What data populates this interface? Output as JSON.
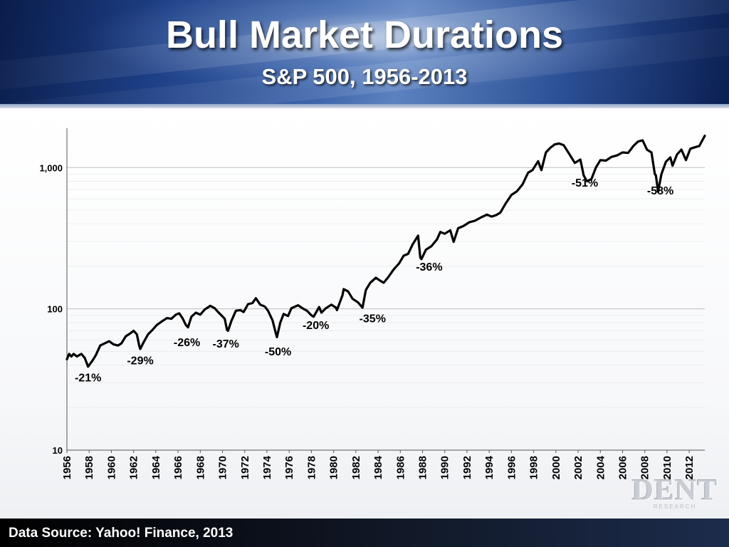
{
  "header": {
    "title": "Bull Market Durations",
    "subtitle": "S&P 500, 1956-2013"
  },
  "footer": {
    "source": "Data Source: Yahoo! Finance, 2013"
  },
  "logo": {
    "text": "DENT",
    "sub": "RESEARCH"
  },
  "colors": {
    "banner": "#1d3f86",
    "line": "#000000",
    "grid": "#bdbdbd",
    "footer": "#000000"
  },
  "chart_data": {
    "type": "line",
    "title": "Bull Market Durations",
    "subtitle": "S&P 500, 1956-2013",
    "xlabel": "",
    "ylabel": "",
    "yscale": "log",
    "ylim": [
      10,
      1900
    ],
    "xlim": [
      1956,
      2013.4
    ],
    "grid": true,
    "y_ticks": [
      10,
      100,
      1000
    ],
    "y_tick_labels": [
      "10",
      "100",
      "1,000"
    ],
    "x_ticks": [
      1956,
      1958,
      1960,
      1962,
      1964,
      1966,
      1968,
      1970,
      1972,
      1974,
      1976,
      1978,
      1980,
      1982,
      1984,
      1986,
      1988,
      1990,
      1992,
      1994,
      1996,
      1998,
      2000,
      2002,
      2004,
      2006,
      2008,
      2010,
      2012
    ],
    "x_tick_labels": [
      "1956",
      "1958",
      "1960",
      "1962",
      "1964",
      "1966",
      "1968",
      "1970",
      "1972",
      "1974",
      "1976",
      "1978",
      "1980",
      "1982",
      "1984",
      "1986",
      "1988",
      "1990",
      "1992",
      "1994",
      "1996",
      "1998",
      "2000",
      "2002",
      "2004",
      "2006",
      "2008",
      "2010",
      "2012"
    ],
    "series": [
      {
        "name": "",
        "points": [
          [
            1956.0,
            44
          ],
          [
            1956.2,
            48
          ],
          [
            1956.4,
            46
          ],
          [
            1956.6,
            48
          ],
          [
            1956.9,
            46
          ],
          [
            1957.3,
            48
          ],
          [
            1957.6,
            45
          ],
          [
            1957.9,
            39
          ],
          [
            1958.3,
            43
          ],
          [
            1958.6,
            47
          ],
          [
            1959.0,
            55
          ],
          [
            1959.4,
            57
          ],
          [
            1959.8,
            59
          ],
          [
            1960.2,
            56
          ],
          [
            1960.6,
            55
          ],
          [
            1960.9,
            57
          ],
          [
            1961.3,
            64
          ],
          [
            1961.7,
            67
          ],
          [
            1962.0,
            70
          ],
          [
            1962.3,
            66
          ],
          [
            1962.5,
            55
          ],
          [
            1962.6,
            52
          ],
          [
            1962.9,
            58
          ],
          [
            1963.3,
            66
          ],
          [
            1963.7,
            71
          ],
          [
            1964.1,
            77
          ],
          [
            1964.6,
            82
          ],
          [
            1965.0,
            86
          ],
          [
            1965.4,
            85
          ],
          [
            1965.8,
            91
          ],
          [
            1966.1,
            93
          ],
          [
            1966.4,
            86
          ],
          [
            1966.7,
            77
          ],
          [
            1966.9,
            74
          ],
          [
            1967.2,
            88
          ],
          [
            1967.6,
            94
          ],
          [
            1968.0,
            91
          ],
          [
            1968.4,
            99
          ],
          [
            1968.9,
            105
          ],
          [
            1969.3,
            101
          ],
          [
            1969.6,
            95
          ],
          [
            1969.9,
            90
          ],
          [
            1970.2,
            85
          ],
          [
            1970.4,
            71
          ],
          [
            1970.5,
            70
          ],
          [
            1970.8,
            82
          ],
          [
            1971.2,
            97
          ],
          [
            1971.6,
            98
          ],
          [
            1971.9,
            95
          ],
          [
            1972.3,
            108
          ],
          [
            1972.7,
            110
          ],
          [
            1973.0,
            119
          ],
          [
            1973.4,
            107
          ],
          [
            1973.8,
            104
          ],
          [
            1974.1,
            97
          ],
          [
            1974.5,
            83
          ],
          [
            1974.8,
            67
          ],
          [
            1974.9,
            63
          ],
          [
            1975.2,
            80
          ],
          [
            1975.5,
            92
          ],
          [
            1975.9,
            89
          ],
          [
            1976.2,
            101
          ],
          [
            1976.8,
            106
          ],
          [
            1977.2,
            101
          ],
          [
            1977.6,
            97
          ],
          [
            1978.0,
            90
          ],
          [
            1978.2,
            88
          ],
          [
            1978.7,
            103
          ],
          [
            1978.9,
            94
          ],
          [
            1979.3,
            101
          ],
          [
            1979.8,
            107
          ],
          [
            1980.2,
            102
          ],
          [
            1980.3,
            98
          ],
          [
            1980.8,
            125
          ],
          [
            1980.9,
            138
          ],
          [
            1981.3,
            133
          ],
          [
            1981.7,
            118
          ],
          [
            1982.2,
            111
          ],
          [
            1982.6,
            102
          ],
          [
            1982.9,
            136
          ],
          [
            1983.3,
            153
          ],
          [
            1983.8,
            166
          ],
          [
            1984.2,
            158
          ],
          [
            1984.5,
            153
          ],
          [
            1984.9,
            167
          ],
          [
            1985.4,
            190
          ],
          [
            1985.9,
            210
          ],
          [
            1986.3,
            238
          ],
          [
            1986.7,
            245
          ],
          [
            1987.1,
            285
          ],
          [
            1987.6,
            330
          ],
          [
            1987.8,
            230
          ],
          [
            1987.9,
            225
          ],
          [
            1988.3,
            262
          ],
          [
            1988.8,
            278
          ],
          [
            1989.3,
            310
          ],
          [
            1989.6,
            350
          ],
          [
            1990.0,
            340
          ],
          [
            1990.5,
            360
          ],
          [
            1990.8,
            298
          ],
          [
            1991.2,
            372
          ],
          [
            1991.7,
            387
          ],
          [
            1992.2,
            410
          ],
          [
            1992.7,
            420
          ],
          [
            1993.3,
            445
          ],
          [
            1993.8,
            465
          ],
          [
            1994.2,
            450
          ],
          [
            1994.6,
            460
          ],
          [
            1995.0,
            480
          ],
          [
            1995.5,
            560
          ],
          [
            1996.0,
            640
          ],
          [
            1996.5,
            680
          ],
          [
            1997.0,
            760
          ],
          [
            1997.5,
            920
          ],
          [
            1997.9,
            960
          ],
          [
            1998.4,
            1110
          ],
          [
            1998.7,
            960
          ],
          [
            1999.1,
            1280
          ],
          [
            1999.5,
            1380
          ],
          [
            1999.9,
            1460
          ],
          [
            2000.3,
            1480
          ],
          [
            2000.7,
            1440
          ],
          [
            2001.2,
            1250
          ],
          [
            2001.7,
            1080
          ],
          [
            2002.2,
            1140
          ],
          [
            2002.5,
            880
          ],
          [
            2002.8,
            800
          ],
          [
            2003.2,
            830
          ],
          [
            2003.6,
            1000
          ],
          [
            2004.0,
            1130
          ],
          [
            2004.5,
            1120
          ],
          [
            2005.0,
            1190
          ],
          [
            2005.5,
            1220
          ],
          [
            2006.0,
            1280
          ],
          [
            2006.5,
            1270
          ],
          [
            2007.0,
            1430
          ],
          [
            2007.4,
            1530
          ],
          [
            2007.8,
            1560
          ],
          [
            2008.2,
            1340
          ],
          [
            2008.6,
            1280
          ],
          [
            2008.9,
            900
          ],
          [
            2009.0,
            880
          ],
          [
            2009.2,
            676
          ],
          [
            2009.5,
            900
          ],
          [
            2009.9,
            1100
          ],
          [
            2010.3,
            1180
          ],
          [
            2010.5,
            1030
          ],
          [
            2010.9,
            1240
          ],
          [
            2011.3,
            1340
          ],
          [
            2011.7,
            1130
          ],
          [
            2012.1,
            1360
          ],
          [
            2012.6,
            1400
          ],
          [
            2012.9,
            1420
          ],
          [
            2013.4,
            1680
          ]
        ]
      }
    ],
    "annotations": [
      {
        "label": "-21%",
        "x": 1957.9,
        "y": 30.6
      },
      {
        "label": "-29%",
        "x": 1962.6,
        "y": 40.5
      },
      {
        "label": "-26%",
        "x": 1966.8,
        "y": 54.3
      },
      {
        "label": "-37%",
        "x": 1970.3,
        "y": 53.2
      },
      {
        "label": "-50%",
        "x": 1975.0,
        "y": 46.9
      },
      {
        "label": "-20%",
        "x": 1978.4,
        "y": 71.9
      },
      {
        "label": "-35%",
        "x": 1983.5,
        "y": 80.3
      },
      {
        "label": "-36%",
        "x": 1988.6,
        "y": 186.3
      },
      {
        "label": "-51%",
        "x": 2002.6,
        "y": 733
      },
      {
        "label": "-58%",
        "x": 2009.4,
        "y": 646
      }
    ]
  }
}
